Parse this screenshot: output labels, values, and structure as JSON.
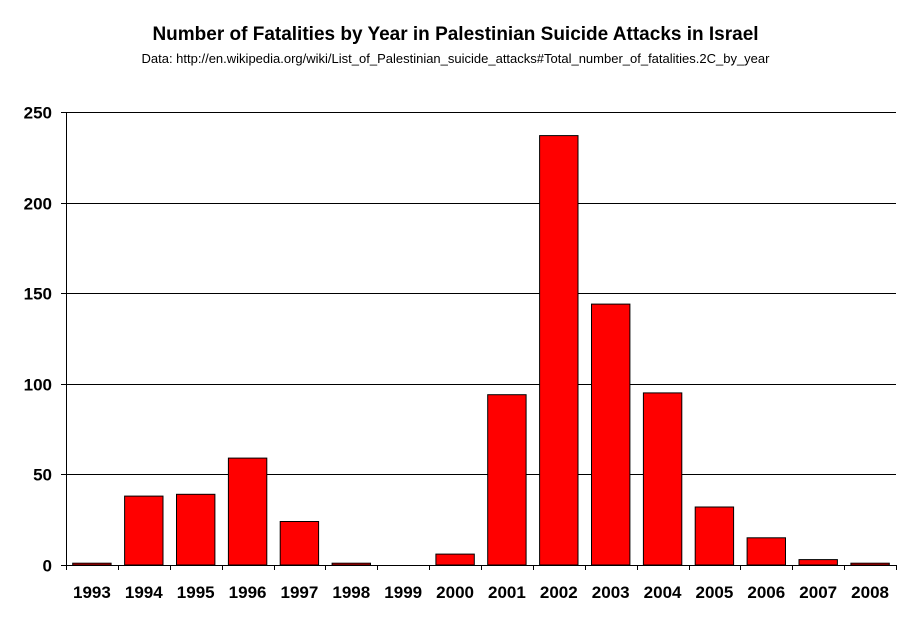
{
  "chart_data": {
    "type": "bar",
    "title": "Number of Fatalities by Year in Palestinian Suicide Attacks in Israel",
    "subtitle": "Data: http://en.wikipedia.org/wiki/List_of_Palestinian_suicide_attacks#Total_number_of_fatalities.2C_by_year",
    "xlabel": "",
    "ylabel": "",
    "categories": [
      "1993",
      "1994",
      "1995",
      "1996",
      "1997",
      "1998",
      "1999",
      "2000",
      "2001",
      "2002",
      "2003",
      "2004",
      "2005",
      "2006",
      "2007",
      "2008"
    ],
    "values": [
      1,
      38,
      39,
      59,
      24,
      1,
      0,
      6,
      94,
      237,
      144,
      95,
      32,
      15,
      3,
      1
    ],
    "ylim": [
      0,
      250
    ],
    "yticks": [
      0,
      50,
      100,
      150,
      200,
      250
    ],
    "grid": true,
    "bar_color": "#ff0000",
    "bar_edge_color": "#000000"
  }
}
